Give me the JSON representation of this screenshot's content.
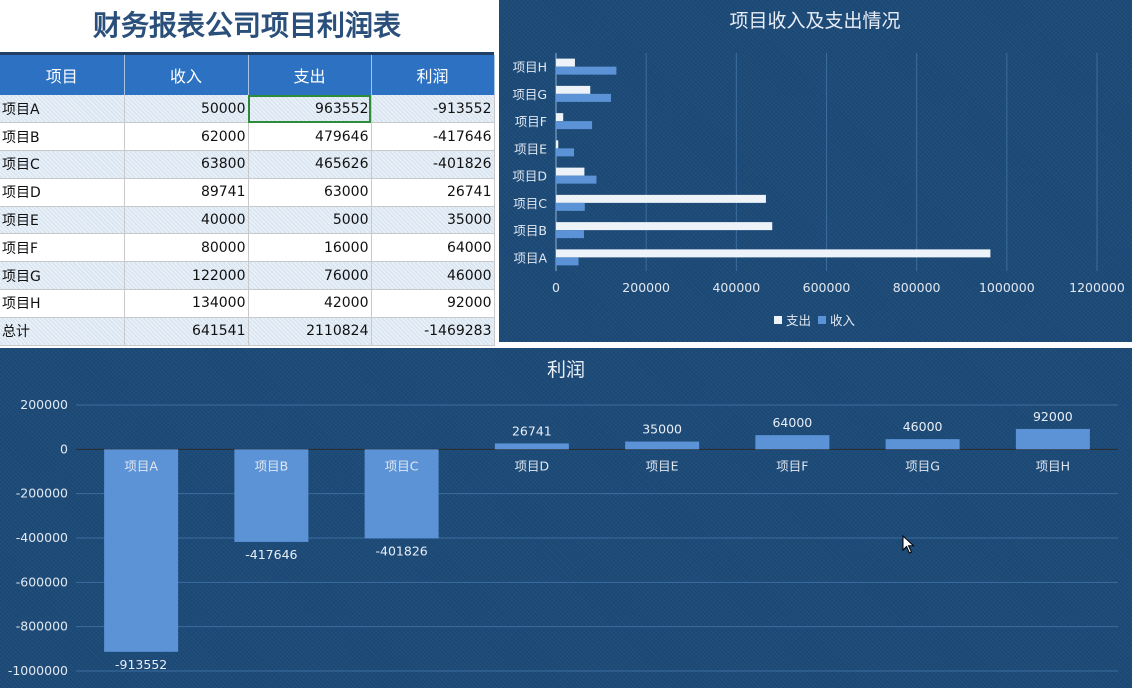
{
  "report": {
    "title": "财务报表公司项目利润表",
    "headers": [
      "项目",
      "收入",
      "支出",
      "利润"
    ],
    "rows": [
      [
        "项目A",
        "50000",
        "963552",
        "-913552"
      ],
      [
        "项目B",
        "62000",
        "479646",
        "-417646"
      ],
      [
        "项目C",
        "63800",
        "465626",
        "-401826"
      ],
      [
        "项目D",
        "89741",
        "63000",
        "26741"
      ],
      [
        "项目E",
        "40000",
        "5000",
        "35000"
      ],
      [
        "项目F",
        "80000",
        "16000",
        "64000"
      ],
      [
        "项目G",
        "122000",
        "76000",
        "46000"
      ],
      [
        "项目H",
        "134000",
        "42000",
        "92000"
      ],
      [
        "总计",
        "641541",
        "2110824",
        "-1469283"
      ]
    ],
    "selected_cell": [
      0,
      2
    ]
  },
  "chart_data": [
    {
      "type": "bar",
      "orientation": "horizontal",
      "title": "项目收入及支出情况",
      "categories": [
        "项目A",
        "项目B",
        "项目C",
        "项目D",
        "项目E",
        "项目F",
        "项目G",
        "项目H"
      ],
      "series": [
        {
          "name": "支出",
          "values": [
            963552,
            479646,
            465626,
            63000,
            5000,
            16000,
            76000,
            42000
          ],
          "color": "#eef3f9"
        },
        {
          "name": "收入",
          "values": [
            50000,
            62000,
            63800,
            89741,
            40000,
            80000,
            122000,
            134000
          ],
          "color": "#5b93d6"
        }
      ],
      "xlim": [
        0,
        1200000
      ],
      "x_ticks": [
        "0",
        "200000",
        "400000",
        "600000",
        "800000",
        "1000000",
        "1200000"
      ],
      "grid": "vertical",
      "legend": "bottom"
    },
    {
      "type": "bar",
      "title": "利润",
      "categories": [
        "项目A",
        "项目B",
        "项目C",
        "项目D",
        "项目E",
        "项目F",
        "项目G",
        "项目H"
      ],
      "values": [
        -913552,
        -417646,
        -401826,
        26741,
        35000,
        64000,
        46000,
        92000
      ],
      "color": "#5b93d6",
      "ylim": [
        -1000000,
        200000
      ],
      "y_ticks": [
        "200000",
        "0",
        "-200000",
        "-400000",
        "-600000",
        "-800000",
        "-1000000"
      ],
      "grid": "horizontal",
      "data_labels": true
    }
  ]
}
